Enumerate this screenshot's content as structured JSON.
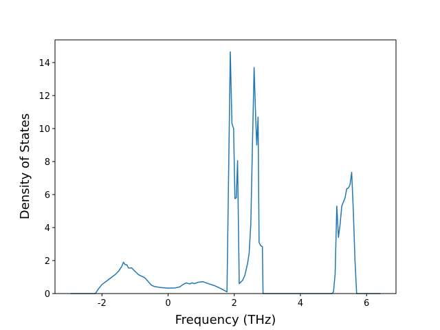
{
  "chart_data": {
    "type": "line",
    "xlabel": "Frequency (THz)",
    "ylabel": "Density of States",
    "x": [
      -2.95,
      -2.2,
      -2.1,
      -2.0,
      -1.8,
      -1.6,
      -1.5,
      -1.4,
      -1.35,
      -1.3,
      -1.25,
      -1.2,
      -1.1,
      -1.0,
      -0.9,
      -0.7,
      -0.5,
      -0.4,
      -0.2,
      0,
      0.2,
      0.35,
      0.45,
      0.55,
      0.65,
      0.72,
      0.8,
      0.9,
      1.05,
      1.15,
      1.4,
      1.6,
      1.78,
      1.88,
      1.93,
      1.98,
      2.02,
      2.06,
      2.1,
      2.15,
      2.25,
      2.32,
      2.4,
      2.45,
      2.5,
      2.55,
      2.6,
      2.65,
      2.68,
      2.72,
      2.75,
      2.8,
      2.85,
      2.87,
      4.95,
      5.0,
      5.05,
      5.1,
      5.15,
      5.2,
      5.25,
      5.35,
      5.4,
      5.45,
      5.5,
      5.55,
      5.6,
      5.65,
      5.7,
      6.42
    ],
    "series": [
      {
        "color": "#1f77b4",
        "values": [
          0,
          0,
          0.3,
          0.55,
          0.85,
          1.15,
          1.35,
          1.65,
          1.9,
          1.75,
          1.75,
          1.55,
          1.55,
          1.35,
          1.15,
          0.95,
          0.5,
          0.42,
          0.36,
          0.33,
          0.34,
          0.4,
          0.55,
          0.65,
          0.58,
          0.65,
          0.6,
          0.68,
          0.72,
          0.65,
          0.48,
          0.3,
          0.1,
          14.65,
          10.3,
          10.0,
          5.75,
          5.8,
          8.05,
          0.6,
          0.8,
          1.1,
          1.8,
          2.45,
          4.2,
          9.0,
          13.7,
          10.5,
          9.0,
          10.7,
          3.1,
          2.9,
          2.85,
          0,
          0,
          0.1,
          1.2,
          5.3,
          3.4,
          4.2,
          5.3,
          5.8,
          6.35,
          6.4,
          6.6,
          7.35,
          5.0,
          2.0,
          0,
          0
        ]
      }
    ],
    "xlim": [
      -3.42,
      6.89
    ],
    "ylim": [
      0,
      15.375
    ],
    "xticks": [
      -2,
      0,
      2,
      4,
      6
    ],
    "yticks": [
      0,
      2,
      4,
      6,
      8,
      10,
      12,
      14
    ]
  }
}
